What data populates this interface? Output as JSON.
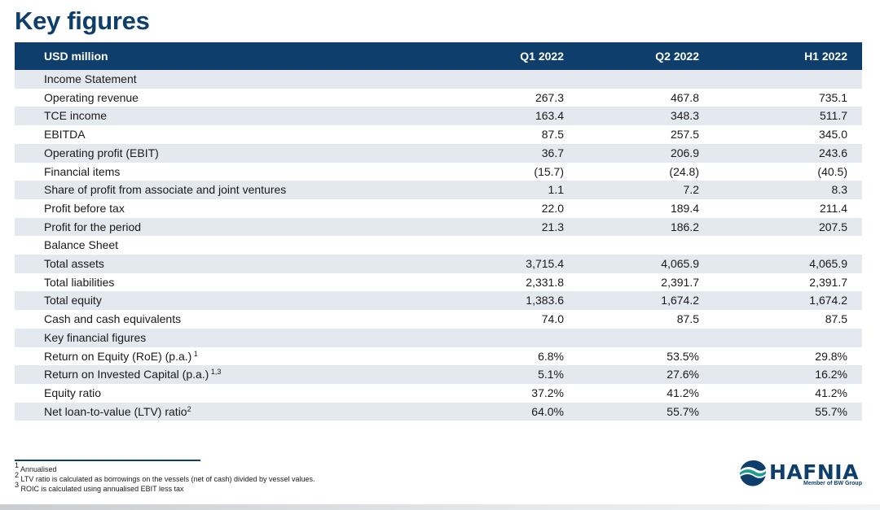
{
  "page": {
    "title": "Key figures"
  },
  "table": {
    "headers": [
      "USD million",
      "Q1 2022",
      "Q2 2022",
      "H1 2022"
    ],
    "rows": [
      {
        "type": "section",
        "label": "Income Statement"
      },
      {
        "type": "data",
        "label": "Operating revenue",
        "values": [
          "267.3",
          "467.8",
          "735.1"
        ]
      },
      {
        "type": "data",
        "label": "TCE income",
        "values": [
          "163.4",
          "348.3",
          "511.7"
        ]
      },
      {
        "type": "data",
        "label": "EBITDA",
        "values": [
          "87.5",
          "257.5",
          "345.0"
        ]
      },
      {
        "type": "data",
        "label": "Operating profit (EBIT)",
        "values": [
          "36.7",
          "206.9",
          "243.6"
        ]
      },
      {
        "type": "data",
        "label": "Financial items",
        "values": [
          "(15.7)",
          "(24.8)",
          "(40.5)"
        ]
      },
      {
        "type": "data",
        "label": "Share of profit from associate and joint ventures",
        "values": [
          "1.1",
          "7.2",
          "8.3"
        ]
      },
      {
        "type": "data",
        "label": "Profit before tax",
        "values": [
          "22.0",
          "189.4",
          "211.4"
        ]
      },
      {
        "type": "data",
        "label": "Profit for the period",
        "values": [
          "21.3",
          "186.2",
          "207.5"
        ]
      },
      {
        "type": "section",
        "label": "Balance Sheet"
      },
      {
        "type": "data",
        "label": "Total assets",
        "values": [
          "3,715.4",
          "4,065.9",
          "4,065.9"
        ]
      },
      {
        "type": "data",
        "label": "Total liabilities",
        "values": [
          "2,331.8",
          "2,391.7",
          "2,391.7"
        ]
      },
      {
        "type": "data",
        "label": "Total equity",
        "values": [
          "1,383.6",
          "1,674.2",
          "1,674.2"
        ]
      },
      {
        "type": "data",
        "label": "Cash and cash equivalents",
        "values": [
          "74.0",
          "87.5",
          "87.5"
        ]
      },
      {
        "type": "section",
        "label": "Key financial figures"
      },
      {
        "type": "data",
        "label": "Return on Equity (RoE) (p.a.)",
        "sup": " 1",
        "values": [
          "6.8%",
          "53.5%",
          "29.8%"
        ]
      },
      {
        "type": "data",
        "label": "Return on Invested Capital (p.a.)",
        "sup": " 1,3",
        "values": [
          "5.1%",
          "27.6%",
          "16.2%"
        ]
      },
      {
        "type": "data",
        "label": "Equity ratio",
        "values": [
          "37.2%",
          "41.2%",
          "41.2%"
        ]
      },
      {
        "type": "data",
        "label": "Net loan-to-value (LTV) ratio",
        "sup": "2",
        "values": [
          "64.0%",
          "55.7%",
          "55.7%"
        ]
      }
    ]
  },
  "footnotes": [
    {
      "mark": "1",
      "text": " Annualised"
    },
    {
      "mark": "2",
      "text": " LTV ratio is calculated as borrowings on the vessels (net of cash) divided by vessel values."
    },
    {
      "mark": "3",
      "text": " ROIC is calculated using annualised EBIT less tax"
    }
  ],
  "logo": {
    "name": "HAFNIA",
    "tagline": "Member of BW Group"
  },
  "colors": {
    "brand": "#0e3e6b",
    "row_shade": "#e4e9ef"
  }
}
